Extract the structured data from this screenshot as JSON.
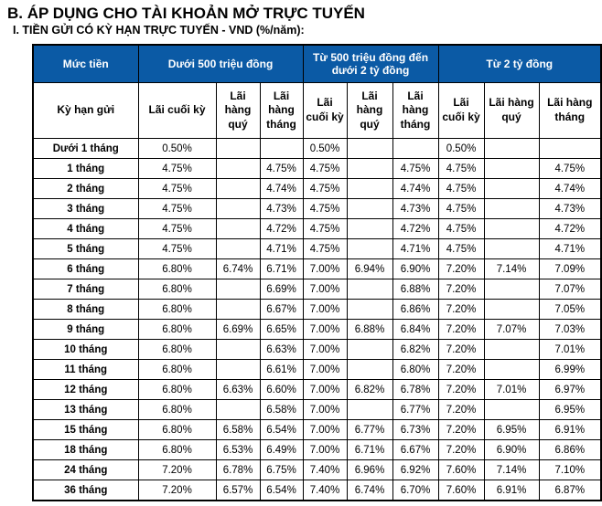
{
  "page": {
    "title": "B. ÁP DỤNG CHO TÀI KHOẢN MỞ TRỰC TUYẾN",
    "subtitle": "I. TIỀN GỬI CÓ KỲ HẠN TRỰC TUYẾN - VND (%/năm):"
  },
  "colors": {
    "header_blue": "#0B5AA5",
    "header_text": "#FFFFFF",
    "border": "#000000",
    "body_text": "#000000"
  },
  "table": {
    "corner_row1": "Mức tiền",
    "corner_row2": "Kỳ hạn gửi",
    "groups": [
      {
        "label": "Dưới 500 triệu đồng"
      },
      {
        "label": "Từ 500 triệu đồng đến dưới 2 tỷ đồng"
      },
      {
        "label": "Từ 2 tỷ đồng"
      }
    ],
    "sub_headers": [
      "Lãi cuối kỳ",
      "Lãi hàng quý",
      "Lãi hàng tháng"
    ],
    "rows": [
      {
        "term": "Dưới 1 tháng",
        "values": [
          "0.50%",
          "",
          "",
          "0.50%",
          "",
          "",
          "0.50%",
          "",
          ""
        ]
      },
      {
        "term": "1 tháng",
        "values": [
          "4.75%",
          "",
          "4.75%",
          "4.75%",
          "",
          "4.75%",
          "4.75%",
          "",
          "4.75%"
        ]
      },
      {
        "term": "2 tháng",
        "values": [
          "4.75%",
          "",
          "4.74%",
          "4.75%",
          "",
          "4.74%",
          "4.75%",
          "",
          "4.74%"
        ]
      },
      {
        "term": "3 tháng",
        "values": [
          "4.75%",
          "",
          "4.73%",
          "4.75%",
          "",
          "4.73%",
          "4.75%",
          "",
          "4.73%"
        ]
      },
      {
        "term": "4 tháng",
        "values": [
          "4.75%",
          "",
          "4.72%",
          "4.75%",
          "",
          "4.72%",
          "4.75%",
          "",
          "4.72%"
        ]
      },
      {
        "term": "5 tháng",
        "values": [
          "4.75%",
          "",
          "4.71%",
          "4.75%",
          "",
          "4.71%",
          "4.75%",
          "",
          "4.71%"
        ]
      },
      {
        "term": "6 tháng",
        "values": [
          "6.80%",
          "6.74%",
          "6.71%",
          "7.00%",
          "6.94%",
          "6.90%",
          "7.20%",
          "7.14%",
          "7.09%"
        ]
      },
      {
        "term": "7 tháng",
        "values": [
          "6.80%",
          "",
          "6.69%",
          "7.00%",
          "",
          "6.88%",
          "7.20%",
          "",
          "7.07%"
        ]
      },
      {
        "term": "8 tháng",
        "values": [
          "6.80%",
          "",
          "6.67%",
          "7.00%",
          "",
          "6.86%",
          "7.20%",
          "",
          "7.05%"
        ]
      },
      {
        "term": "9 tháng",
        "values": [
          "6.80%",
          "6.69%",
          "6.65%",
          "7.00%",
          "6.88%",
          "6.84%",
          "7.20%",
          "7.07%",
          "7.03%"
        ]
      },
      {
        "term": "10 tháng",
        "values": [
          "6.80%",
          "",
          "6.63%",
          "7.00%",
          "",
          "6.82%",
          "7.20%",
          "",
          "7.01%"
        ]
      },
      {
        "term": "11 tháng",
        "values": [
          "6.80%",
          "",
          "6.61%",
          "7.00%",
          "",
          "6.80%",
          "7.20%",
          "",
          "6.99%"
        ]
      },
      {
        "term": "12 tháng",
        "values": [
          "6.80%",
          "6.63%",
          "6.60%",
          "7.00%",
          "6.82%",
          "6.78%",
          "7.20%",
          "7.01%",
          "6.97%"
        ]
      },
      {
        "term": "13 tháng",
        "values": [
          "6.80%",
          "",
          "6.58%",
          "7.00%",
          "",
          "6.77%",
          "7.20%",
          "",
          "6.95%"
        ]
      },
      {
        "term": "15 tháng",
        "values": [
          "6.80%",
          "6.58%",
          "6.54%",
          "7.00%",
          "6.77%",
          "6.73%",
          "7.20%",
          "6.95%",
          "6.91%"
        ]
      },
      {
        "term": "18 tháng",
        "values": [
          "6.80%",
          "6.53%",
          "6.49%",
          "7.00%",
          "6.71%",
          "6.67%",
          "7.20%",
          "6.90%",
          "6.86%"
        ]
      },
      {
        "term": "24 tháng",
        "values": [
          "7.20%",
          "6.78%",
          "6.75%",
          "7.40%",
          "6.96%",
          "6.92%",
          "7.60%",
          "7.14%",
          "7.10%"
        ]
      },
      {
        "term": "36 tháng",
        "values": [
          "7.20%",
          "6.57%",
          "6.54%",
          "7.40%",
          "6.74%",
          "6.70%",
          "7.60%",
          "6.91%",
          "6.87%"
        ]
      }
    ]
  }
}
